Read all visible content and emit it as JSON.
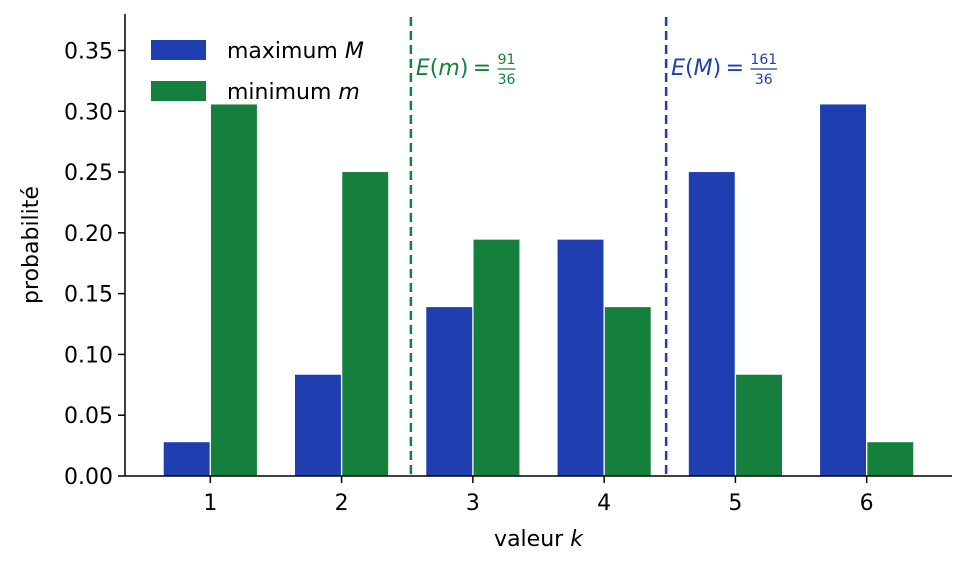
{
  "chart_data": {
    "type": "bar",
    "categories": [
      1,
      2,
      3,
      4,
      5,
      6
    ],
    "series": [
      {
        "name": "maximum M",
        "color": "#1f3fb0",
        "values": [
          0.0278,
          0.0833,
          0.1389,
          0.1944,
          0.25,
          0.3056
        ]
      },
      {
        "name": "minimum m",
        "color": "#15803d",
        "values": [
          0.3056,
          0.25,
          0.1944,
          0.1389,
          0.0833,
          0.0278
        ]
      }
    ],
    "xlabel_text": "valeur",
    "xlabel_var": "k",
    "ylabel": "probabilité",
    "ylim": [
      0,
      0.38
    ],
    "yticks": [
      "0.00",
      "0.05",
      "0.10",
      "0.15",
      "0.20",
      "0.25",
      "0.30",
      "0.35"
    ],
    "grid": false,
    "legend": {
      "placement": "top-left",
      "entries": [
        {
          "text": "maximum",
          "var": "M",
          "color": "#1f3fb0"
        },
        {
          "text": "minimum",
          "var": "m",
          "color": "#15803d"
        }
      ]
    },
    "annotations": [
      {
        "x": 2.5278,
        "prefix": "E(",
        "var": "m",
        "suffix": ") = ",
        "num": "91",
        "den": "36",
        "color": "#15803d"
      },
      {
        "x": 4.4722,
        "prefix": "E(",
        "var": "M",
        "suffix": ") = ",
        "num": "161",
        "den": "36",
        "color": "#1f3fb0"
      }
    ]
  }
}
